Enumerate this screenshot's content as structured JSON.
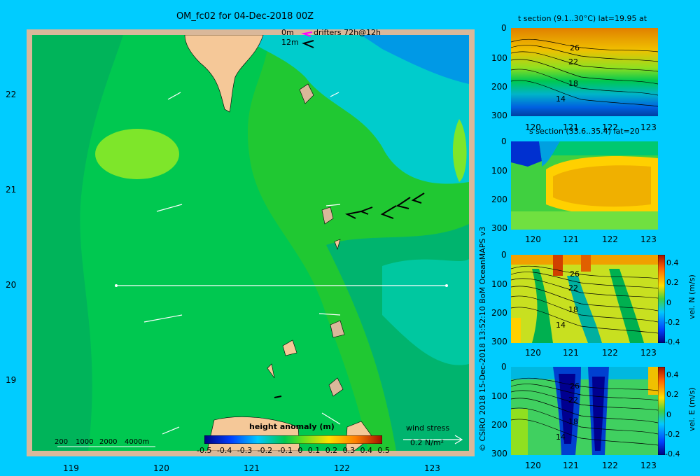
{
  "main": {
    "title": "OM_fc02 for 04-Dec-2018 00Z",
    "drifters_label_0m": "0m",
    "drifters_label_12m": "12m",
    "drifters_text": "drifters 72h@12h",
    "colorbar_title": "height anomaly (m)",
    "colorbar_ticks": [
      "-0.5",
      "-0.4",
      "-0.3",
      "-0.2",
      "-0.1",
      "0",
      "0.1",
      "0.2",
      "0.3",
      "0.4",
      "0.5"
    ],
    "depth_legend": [
      "200",
      "1000",
      "2000",
      "4000m"
    ],
    "wind_stress_label": "wind stress",
    "wind_stress_value": "0.2 N/m²",
    "credit": "© CSIRO 2018  15-Dec-2018 13:52:10 BoM OceanMAPS v3"
  },
  "colors": {
    "background": "#00ccff",
    "land": "#f5c898",
    "frame": "#d9b89a",
    "arrows": "#ffffff",
    "drifter_0m": "#ff00ff",
    "drifter_12m": "#000000"
  },
  "chart_data": [
    {
      "type": "heatmap",
      "name": "main_map",
      "title": "OM_fc02 for 04-Dec-2018 00Z",
      "xlabel": "",
      "ylabel": "",
      "xticks": [
        "119",
        "120",
        "121",
        "122",
        "123"
      ],
      "yticks": [
        "22",
        "21",
        "20",
        "19"
      ],
      "xlim": [
        118.5,
        123.5
      ],
      "ylim": [
        18.2,
        22.7
      ],
      "colorbar": {
        "label": "height anomaly (m)",
        "range": [
          -0.5,
          0.5
        ]
      },
      "section_line": {
        "lat": 20,
        "lon_start": 119.5,
        "lon_end": 123.2
      }
    },
    {
      "type": "heatmap",
      "name": "t_section",
      "title": "t section (9.1..30°C) lat=19.95 at",
      "xticks": [
        "120",
        "121",
        "122",
        "123"
      ],
      "yticks": [
        "0",
        "100",
        "200",
        "300"
      ],
      "xlim": [
        119.5,
        123.2
      ],
      "ylim": [
        300,
        0
      ],
      "contour_labels": [
        "26",
        "22",
        "18",
        "14"
      ]
    },
    {
      "type": "heatmap",
      "name": "s_section",
      "title": "s section (33.6..35.4) lat=20",
      "xticks": [
        "120",
        "121",
        "122",
        "123"
      ],
      "yticks": [
        "0",
        "100",
        "200",
        "300"
      ],
      "xlim": [
        119.5,
        123.2
      ],
      "ylim": [
        300,
        0
      ]
    },
    {
      "type": "heatmap",
      "name": "vel_n_section",
      "title": "",
      "xticks": [
        "120",
        "121",
        "122",
        "123"
      ],
      "yticks": [
        "0",
        "100",
        "200",
        "300"
      ],
      "xlim": [
        119.5,
        123.2
      ],
      "ylim": [
        300,
        0
      ],
      "contour_labels": [
        "26",
        "22",
        "18",
        "14"
      ],
      "colorbar": {
        "label": "vel. N (m/s)",
        "ticks": [
          "0.4",
          "0.2",
          "0",
          "-0.2",
          "-0.4"
        ]
      }
    },
    {
      "type": "heatmap",
      "name": "vel_e_section",
      "title": "",
      "xticks": [
        "120",
        "121",
        "122",
        "123"
      ],
      "yticks": [
        "0",
        "100",
        "200",
        "300"
      ],
      "xlim": [
        119.5,
        123.2
      ],
      "ylim": [
        300,
        0
      ],
      "contour_labels": [
        "26",
        "22",
        "18",
        "14"
      ],
      "colorbar": {
        "label": "vel. E (m/s)",
        "ticks": [
          "0.4",
          "0.2",
          "0",
          "-0.2",
          "-0.4"
        ]
      }
    }
  ]
}
